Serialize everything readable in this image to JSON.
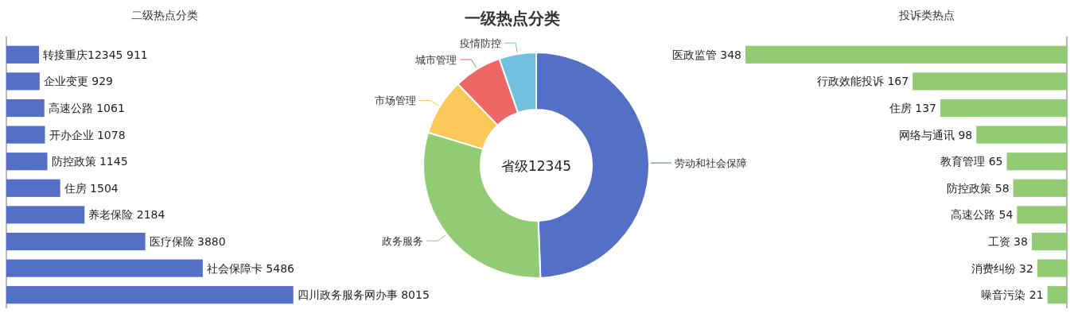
{
  "chart_data": [
    {
      "type": "bar",
      "orientation": "horizontal",
      "title": "二级热点分类",
      "categories": [
        null,
        null,
        null,
        null,
        null,
        null,
        null,
        null,
        null,
        null
      ],
      "values": [
        911,
        929,
        1061,
        1078,
        1145,
        1504,
        2184,
        3880,
        5486,
        8015
      ],
      "value_labels": [
        "转接重庆12345 911",
        "企业变更 929",
        "高速公路 1061",
        "开办企业 1078",
        "防控政策 1145",
        "住房 1504",
        "养老保险 2184",
        "医疗保险 3880",
        "社会保障卡 5486",
        "四川政务服务网办事 8015"
      ],
      "color": "#5470c6"
    },
    {
      "type": "donut",
      "title": "一级热点分类",
      "categories": [
        "劳动和社会保障",
        "政务服务",
        "市场管理",
        "城市管理",
        "疫情防控"
      ],
      "values": [
        49.4,
        30.3,
        8.1,
        6.9,
        5.3
      ],
      "colors": [
        "#5470c6",
        "#91cc75",
        "#fac858",
        "#ee6666",
        "#73c0de"
      ],
      "annotations": [
        "省级12345"
      ]
    },
    {
      "type": "bar",
      "orientation": "horizontal",
      "title": "投诉类热点",
      "categories": [
        null,
        null,
        null,
        null,
        null,
        null,
        null,
        null,
        null,
        null
      ],
      "values": [
        348,
        167,
        137,
        98,
        65,
        58,
        54,
        38,
        32,
        21
      ],
      "value_labels": [
        "医政监管 348",
        "行政效能投诉 167",
        "住房 137",
        "网络与通讯 98",
        "教育管理 65",
        "防控政策 58",
        "高速公路 54",
        "工资 38",
        "消费纠纷 32",
        "噪音污染 21"
      ],
      "color": "#91cc75"
    }
  ]
}
